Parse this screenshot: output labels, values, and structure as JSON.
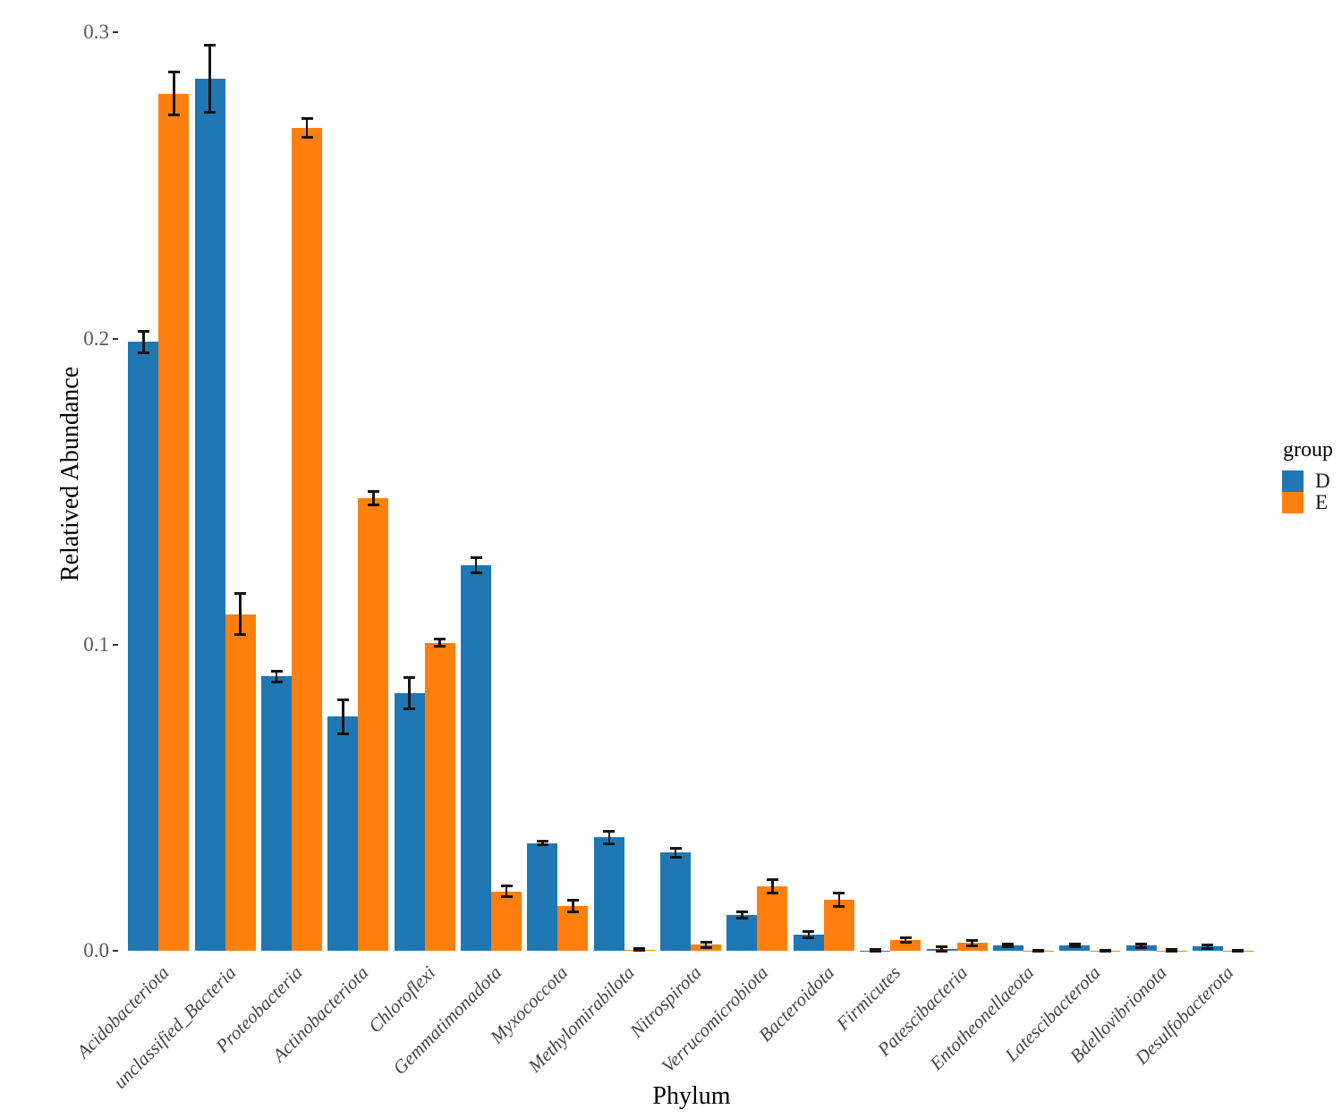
{
  "chart_data": {
    "type": "bar",
    "bar_style": "grouped-dodge",
    "title": "",
    "xlabel": "Phylum",
    "ylabel": "Relatived Abundance",
    "grid": false,
    "error_bars": true,
    "ylim": [
      0,
      0.305
    ],
    "y_ticks": [
      0.0,
      0.1,
      0.2,
      0.3
    ],
    "y_tick_labels": [
      "0.0",
      "0.1",
      "0.2",
      "0.3"
    ],
    "categories": [
      "Acidobacteriota",
      "unclassified_Bacteria",
      "Proteobacteria",
      "Actinobacteriota",
      "Chloroflexi",
      "Gemmatimonadota",
      "Myxococcota",
      "Methylomirabilota",
      "Nitrospirota",
      "Verrucomicrobiota",
      "Bacteroidota",
      "Firmicutes",
      "Patescibacteria",
      "Entotheonellaeota",
      "Latescibacterota",
      "Bdellovibrionota",
      "Desulfobacterota"
    ],
    "series": [
      {
        "name": "D",
        "color": "#1f77b4",
        "values": [
          0.199,
          0.285,
          0.0897,
          0.0765,
          0.0841,
          0.126,
          0.0352,
          0.0371,
          0.0321,
          0.0118,
          0.0053,
          0.0002,
          0.0007,
          0.0019,
          0.0018,
          0.0017,
          0.0015
        ],
        "errors": [
          0.0035,
          0.011,
          0.0017,
          0.0055,
          0.0051,
          0.0025,
          0.0006,
          0.002,
          0.0015,
          0.0011,
          0.001,
          0.0002,
          0.0007,
          0.0004,
          0.0005,
          0.0006,
          0.0006
        ]
      },
      {
        "name": "E",
        "color": "#ff7f0e",
        "values": [
          0.28,
          0.11,
          0.2688,
          0.1479,
          0.1007,
          0.0195,
          0.0148,
          0.0005,
          0.002,
          0.0212,
          0.0168,
          0.0036,
          0.0026,
          0.0001,
          0.0001,
          0.0002,
          0.0001
        ],
        "errors": [
          0.007,
          0.0067,
          0.003,
          0.0021,
          0.0012,
          0.0018,
          0.0019,
          0.0004,
          0.0008,
          0.0022,
          0.0022,
          0.0008,
          0.0008,
          0.0001,
          0.0001,
          0.0002,
          0.0001
        ]
      }
    ],
    "legend": {
      "title": "group",
      "position": "right"
    }
  }
}
